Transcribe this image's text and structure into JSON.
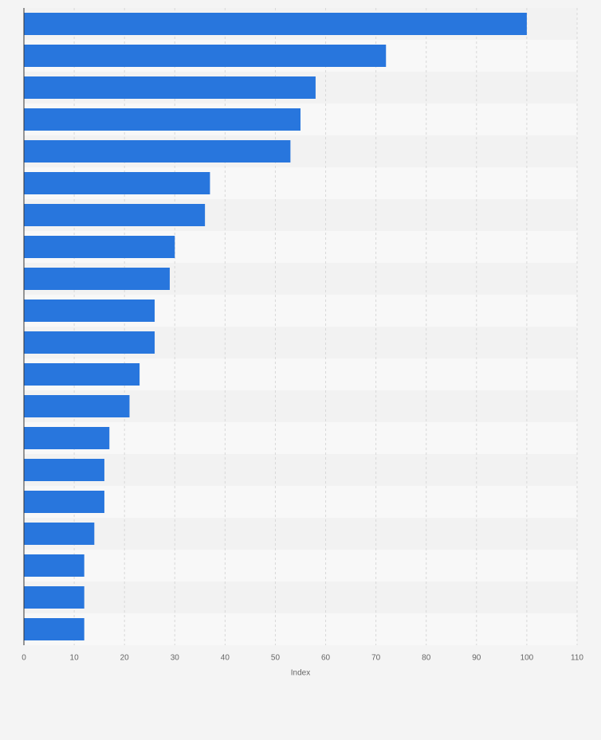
{
  "chart_data": {
    "type": "bar",
    "orientation": "horizontal",
    "categories": [
      null,
      null,
      null,
      null,
      null,
      null,
      null,
      null,
      null,
      null,
      null,
      null,
      null,
      null,
      null,
      null,
      null,
      null,
      null,
      null
    ],
    "values": [
      100,
      72,
      58,
      55,
      53,
      37,
      36,
      30,
      29,
      26,
      26,
      23,
      21,
      17,
      16,
      16,
      14,
      12,
      12,
      12
    ],
    "color": "#2876dd",
    "x_label": "Index",
    "xlim": [
      0,
      110
    ],
    "xticks": [
      0,
      10,
      20,
      30,
      40,
      50,
      60,
      70,
      80,
      90,
      100,
      110
    ],
    "grid": true
  }
}
